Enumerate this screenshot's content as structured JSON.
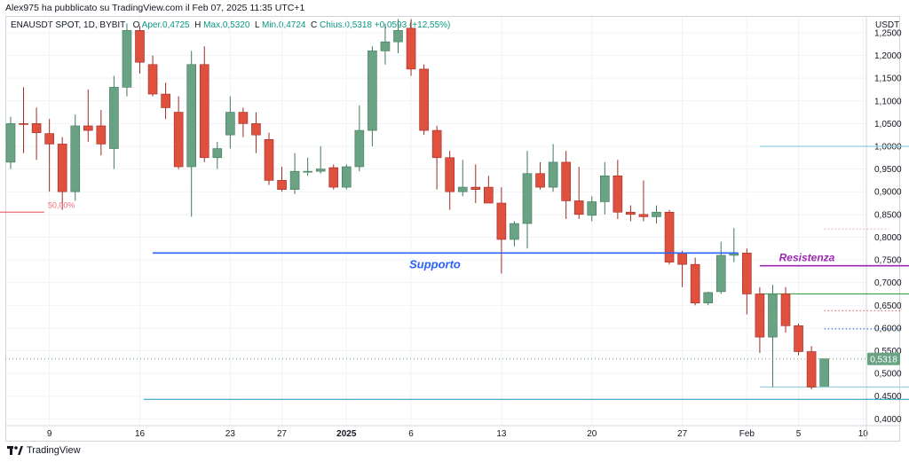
{
  "header": {
    "publish_line": "Alex975 ha pubblicato su TradingView.com il Feb 07, 2025 11:35 UTC+1"
  },
  "legend": {
    "symbol": "ENAUSDT SPOT, 1D, BYBIT",
    "open_label": "O",
    "open": "Aper.0,4725",
    "high_label": "H",
    "high": "Max.0,5320",
    "low_label": "L",
    "low": "Min.0,4724",
    "close_label": "C",
    "close": "Chius.0,5318",
    "change": "+0,0593 (+12,55%)"
  },
  "footer": {
    "brand": "TradingView"
  },
  "colors": {
    "up": "#6aa384",
    "down": "#e0503e",
    "support": "#2962ff",
    "resistance": "#9c27b0"
  },
  "chart_data": {
    "type": "candlestick",
    "currency": "USDT",
    "ylim": [
      0.385,
      1.285
    ],
    "y_ticks": [
      "1,2500",
      "1,2000",
      "1,1500",
      "1,1000",
      "1,0500",
      "1,0000",
      "0,9500",
      "0,9000",
      "0,8500",
      "0,8000",
      "0,7500",
      "0,7000",
      "0,6500",
      "0,6000",
      "0,5500",
      "0,5000",
      "0,4500",
      "0,4000"
    ],
    "x_ticks": [
      {
        "label": "9",
        "bar": 3
      },
      {
        "label": "16",
        "bar": 10
      },
      {
        "label": "23",
        "bar": 17
      },
      {
        "label": "27",
        "bar": 21
      },
      {
        "label": "2025",
        "bar": 26
      },
      {
        "label": "6",
        "bar": 31
      },
      {
        "label": "13",
        "bar": 38
      },
      {
        "label": "20",
        "bar": 45
      },
      {
        "label": "27",
        "bar": 52
      },
      {
        "label": "Feb",
        "bar": 57
      },
      {
        "label": "5",
        "bar": 61
      },
      {
        "label": "10",
        "bar": 66
      }
    ],
    "last_price": "0,5318",
    "candles": [
      {
        "o": 0.965,
        "h": 1.065,
        "l": 0.95,
        "c": 1.05
      },
      {
        "o": 1.05,
        "h": 1.13,
        "l": 0.985,
        "c": 1.048
      },
      {
        "o": 1.05,
        "h": 1.085,
        "l": 0.97,
        "c": 1.03
      },
      {
        "o": 1.028,
        "h": 1.06,
        "l": 0.9,
        "c": 1.005
      },
      {
        "o": 1.005,
        "h": 1.02,
        "l": 0.86,
        "c": 0.9
      },
      {
        "o": 0.9,
        "h": 1.07,
        "l": 0.88,
        "c": 1.045
      },
      {
        "o": 1.045,
        "h": 1.125,
        "l": 1.01,
        "c": 1.035
      },
      {
        "o": 1.045,
        "h": 1.08,
        "l": 0.98,
        "c": 1.005
      },
      {
        "o": 0.995,
        "h": 1.155,
        "l": 0.95,
        "c": 1.13
      },
      {
        "o": 1.13,
        "h": 1.27,
        "l": 1.11,
        "c": 1.255
      },
      {
        "o": 1.255,
        "h": 1.265,
        "l": 1.16,
        "c": 1.185
      },
      {
        "o": 1.18,
        "h": 1.2,
        "l": 1.11,
        "c": 1.115
      },
      {
        "o": 1.115,
        "h": 1.14,
        "l": 1.06,
        "c": 1.085
      },
      {
        "o": 1.075,
        "h": 1.11,
        "l": 0.95,
        "c": 0.955
      },
      {
        "o": 0.955,
        "h": 1.21,
        "l": 0.845,
        "c": 1.18
      },
      {
        "o": 1.18,
        "h": 1.22,
        "l": 0.965,
        "c": 0.975
      },
      {
        "o": 0.975,
        "h": 1.01,
        "l": 0.95,
        "c": 0.995
      },
      {
        "o": 1.025,
        "h": 1.11,
        "l": 0.995,
        "c": 1.075
      },
      {
        "o": 1.075,
        "h": 1.085,
        "l": 1.02,
        "c": 1.05
      },
      {
        "o": 1.05,
        "h": 1.075,
        "l": 0.985,
        "c": 1.025
      },
      {
        "o": 1.015,
        "h": 1.03,
        "l": 0.915,
        "c": 0.925
      },
      {
        "o": 0.925,
        "h": 0.955,
        "l": 0.9,
        "c": 0.905
      },
      {
        "o": 0.905,
        "h": 0.985,
        "l": 0.895,
        "c": 0.945
      },
      {
        "o": 0.945,
        "h": 0.975,
        "l": 0.935,
        "c": 0.945
      },
      {
        "o": 0.945,
        "h": 1.0,
        "l": 0.94,
        "c": 0.95
      },
      {
        "o": 0.953,
        "h": 0.96,
        "l": 0.905,
        "c": 0.91
      },
      {
        "o": 0.91,
        "h": 0.96,
        "l": 0.905,
        "c": 0.955
      },
      {
        "o": 0.955,
        "h": 1.09,
        "l": 0.945,
        "c": 1.035
      },
      {
        "o": 1.035,
        "h": 1.22,
        "l": 1.0,
        "c": 1.21
      },
      {
        "o": 1.21,
        "h": 1.27,
        "l": 1.18,
        "c": 1.23
      },
      {
        "o": 1.23,
        "h": 1.28,
        "l": 1.205,
        "c": 1.255
      },
      {
        "o": 1.26,
        "h": 1.28,
        "l": 1.155,
        "c": 1.17
      },
      {
        "o": 1.17,
        "h": 1.18,
        "l": 1.025,
        "c": 1.035
      },
      {
        "o": 1.035,
        "h": 1.045,
        "l": 0.905,
        "c": 0.975
      },
      {
        "o": 0.975,
        "h": 0.99,
        "l": 0.86,
        "c": 0.9
      },
      {
        "o": 0.9,
        "h": 0.97,
        "l": 0.89,
        "c": 0.91
      },
      {
        "o": 0.91,
        "h": 0.96,
        "l": 0.875,
        "c": 0.905
      },
      {
        "o": 0.91,
        "h": 0.935,
        "l": 0.88,
        "c": 0.875
      },
      {
        "o": 0.875,
        "h": 0.91,
        "l": 0.72,
        "c": 0.795
      },
      {
        "o": 0.795,
        "h": 0.835,
        "l": 0.78,
        "c": 0.83
      },
      {
        "o": 0.83,
        "h": 0.99,
        "l": 0.775,
        "c": 0.94
      },
      {
        "o": 0.94,
        "h": 0.965,
        "l": 0.905,
        "c": 0.91
      },
      {
        "o": 0.91,
        "h": 1.005,
        "l": 0.9,
        "c": 0.965
      },
      {
        "o": 0.965,
        "h": 0.99,
        "l": 0.84,
        "c": 0.88
      },
      {
        "o": 0.88,
        "h": 0.955,
        "l": 0.84,
        "c": 0.85
      },
      {
        "o": 0.848,
        "h": 0.89,
        "l": 0.835,
        "c": 0.878
      },
      {
        "o": 0.878,
        "h": 0.965,
        "l": 0.85,
        "c": 0.935
      },
      {
        "o": 0.935,
        "h": 0.97,
        "l": 0.84,
        "c": 0.855
      },
      {
        "o": 0.855,
        "h": 0.87,
        "l": 0.835,
        "c": 0.85
      },
      {
        "o": 0.85,
        "h": 0.925,
        "l": 0.835,
        "c": 0.845
      },
      {
        "o": 0.845,
        "h": 0.87,
        "l": 0.83,
        "c": 0.855
      },
      {
        "o": 0.855,
        "h": 0.86,
        "l": 0.74,
        "c": 0.745
      },
      {
        "o": 0.765,
        "h": 0.77,
        "l": 0.69,
        "c": 0.74
      },
      {
        "o": 0.74,
        "h": 0.755,
        "l": 0.65,
        "c": 0.655
      },
      {
        "o": 0.655,
        "h": 0.68,
        "l": 0.65,
        "c": 0.678
      },
      {
        "o": 0.68,
        "h": 0.79,
        "l": 0.675,
        "c": 0.76
      },
      {
        "o": 0.76,
        "h": 0.82,
        "l": 0.745,
        "c": 0.765
      },
      {
        "o": 0.765,
        "h": 0.775,
        "l": 0.63,
        "c": 0.675
      },
      {
        "o": 0.675,
        "h": 0.69,
        "l": 0.545,
        "c": 0.58
      },
      {
        "o": 0.58,
        "h": 0.695,
        "l": 0.47,
        "c": 0.675
      },
      {
        "o": 0.675,
        "h": 0.69,
        "l": 0.59,
        "c": 0.605
      },
      {
        "o": 0.605,
        "h": 0.61,
        "l": 0.54,
        "c": 0.548
      },
      {
        "o": 0.548,
        "h": 0.56,
        "l": 0.465,
        "c": 0.47
      },
      {
        "o": 0.472,
        "h": 0.532,
        "l": 0.472,
        "c": 0.532
      }
    ],
    "annotations": [
      {
        "label": "Supporto",
        "y": 0.765,
        "from_bar": 11,
        "to_bar": 56.3,
        "color": "#2962ff"
      },
      {
        "label": "Resistenza",
        "y": 0.737,
        "from_bar": 58,
        "to_bar": 69.7,
        "color": "#9c27b0"
      },
      {
        "label": "50,00%",
        "y": 0.855,
        "from_bar": -1,
        "to_bar": 2.6,
        "color": "#f06a75"
      }
    ],
    "levels": [
      {
        "y": 1.0,
        "from_bar": 58,
        "to_bar": 70,
        "color": "#8fd0e0",
        "style": "solid"
      },
      {
        "y": 0.818,
        "from_bar": 63,
        "to_bar": 68,
        "color": "#e6a0a6",
        "style": "dotted"
      },
      {
        "y": 0.675,
        "from_bar": 58,
        "to_bar": 70,
        "color": "#43a047",
        "style": "solid"
      },
      {
        "y": 0.638,
        "from_bar": 63,
        "to_bar": 69,
        "color": "#e05363",
        "style": "dotted"
      },
      {
        "y": 0.598,
        "from_bar": 63,
        "to_bar": 69,
        "color": "#1e55b0",
        "style": "dotted"
      },
      {
        "y": 0.47,
        "from_bar": 58,
        "to_bar": 70,
        "color": "#8fd0e0",
        "style": "solid"
      },
      {
        "y": 0.443,
        "from_bar": 10.3,
        "to_bar": 70,
        "color": "#3aa0c8",
        "style": "solid"
      }
    ]
  }
}
